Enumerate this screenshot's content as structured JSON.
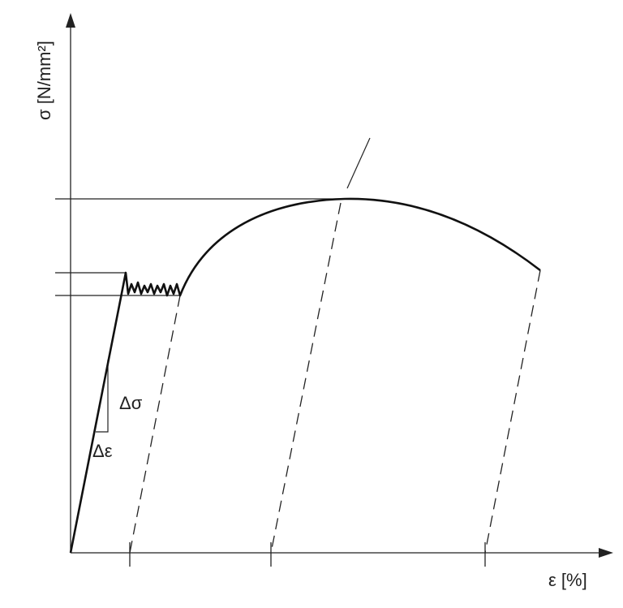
{
  "axes": {
    "y_label": "σ [N/mm²]",
    "x_label": "ε [%]"
  },
  "annotations": {
    "delta_sigma": "Δσ",
    "delta_epsilon": "Δε"
  }
}
